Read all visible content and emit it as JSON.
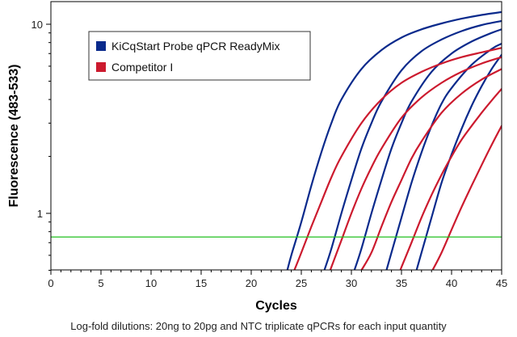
{
  "chart_data": {
    "type": "line",
    "title": "",
    "xlabel": "Cycles",
    "ylabel": "Fluorescence (483-533)",
    "xlim": [
      0,
      45
    ],
    "ylim": [
      0.5,
      14
    ],
    "yscale": "log",
    "x_ticks": [
      "0",
      "5",
      "10",
      "15",
      "20",
      "25",
      "30",
      "35",
      "40",
      "45"
    ],
    "y_ticks": [
      {
        "value": 1,
        "label": "1"
      },
      {
        "value": 10,
        "label": "10"
      }
    ],
    "legend_position": "top-left",
    "grid": false,
    "threshold": {
      "y": 0.75,
      "color": "#22c020"
    },
    "caption": "Log-fold dilutions: 20ng to 20pg and NTC triplicate qPCRs for each input quantity",
    "series": [
      {
        "name": "KiCqStart Probe qPCR ReadyMix",
        "color": "#0a2a8c",
        "curves": [
          {
            "x": [
              23.6,
              24,
              25,
              26,
              27,
              28,
              29,
              31,
              33,
              35,
              37,
              39,
              41,
              43,
              45
            ],
            "y": [
              0.5,
              0.6,
              0.9,
              1.4,
              2.1,
              3.0,
              4.0,
              5.8,
              7.3,
              8.5,
              9.4,
              10.1,
              10.7,
              11.2,
              11.6
            ]
          },
          {
            "x": [
              27.3,
              28,
              29,
              30,
              31,
              32,
              33,
              35,
              37,
              39,
              41,
              43,
              45
            ],
            "y": [
              0.5,
              0.65,
              1.0,
              1.5,
              2.2,
              3.0,
              3.9,
              5.7,
              7.2,
              8.3,
              9.2,
              9.9,
              10.4
            ]
          },
          {
            "x": [
              30.3,
              31,
              32,
              33,
              34,
              35,
              36,
              38,
              40,
              42,
              44,
              45
            ],
            "y": [
              0.5,
              0.65,
              1.0,
              1.5,
              2.2,
              3.0,
              3.9,
              5.6,
              7.0,
              8.1,
              9.0,
              9.4
            ]
          },
          {
            "x": [
              33.5,
              34,
              35,
              36,
              37,
              38,
              39,
              40,
              42,
              44,
              45
            ],
            "y": [
              0.5,
              0.62,
              0.95,
              1.45,
              2.1,
              2.9,
              3.8,
              4.6,
              6.1,
              7.4,
              7.9
            ]
          },
          {
            "x": [
              36.5,
              37,
              38,
              39,
              40,
              41,
              42,
              43,
              44,
              45
            ],
            "y": [
              0.5,
              0.62,
              0.95,
              1.45,
              2.05,
              2.8,
              3.7,
              4.7,
              5.8,
              6.9
            ]
          }
        ]
      },
      {
        "name": "Competitor I",
        "color": "#cc1a2e",
        "curves": [
          {
            "x": [
              24.3,
              25,
              26,
              27,
              28,
              29,
              31,
              33,
              35,
              37,
              39,
              41,
              43,
              45
            ],
            "y": [
              0.5,
              0.62,
              0.85,
              1.15,
              1.55,
              2.0,
              3.0,
              4.0,
              4.9,
              5.6,
              6.2,
              6.7,
              7.1,
              7.5
            ]
          },
          {
            "x": [
              27.9,
              28,
              29,
              30,
              31,
              32,
              33,
              35,
              37,
              39,
              41,
              43,
              45
            ],
            "y": [
              0.5,
              0.52,
              0.72,
              1.0,
              1.35,
              1.75,
              2.2,
              3.2,
              4.1,
              4.9,
              5.6,
              6.2,
              6.7
            ]
          },
          {
            "x": [
              31.0,
              32,
              33,
              34,
              35,
              36,
              37,
              39,
              41,
              43,
              45
            ],
            "y": [
              0.5,
              0.62,
              0.85,
              1.15,
              1.5,
              1.95,
              2.4,
              3.4,
              4.3,
              5.1,
              5.8
            ]
          },
          {
            "x": [
              34.9,
              35,
              36,
              37,
              38,
              39,
              40,
              41,
              42,
              43,
              44,
              45
            ],
            "y": [
              0.5,
              0.52,
              0.7,
              0.95,
              1.25,
              1.6,
              2.0,
              2.45,
              2.9,
              3.4,
              3.95,
              4.55
            ]
          },
          {
            "x": [
              38.1,
              39,
              40,
              41,
              42,
              43,
              44,
              45
            ],
            "y": [
              0.5,
              0.62,
              0.82,
              1.08,
              1.4,
              1.8,
              2.3,
              2.9
            ]
          }
        ]
      }
    ]
  }
}
